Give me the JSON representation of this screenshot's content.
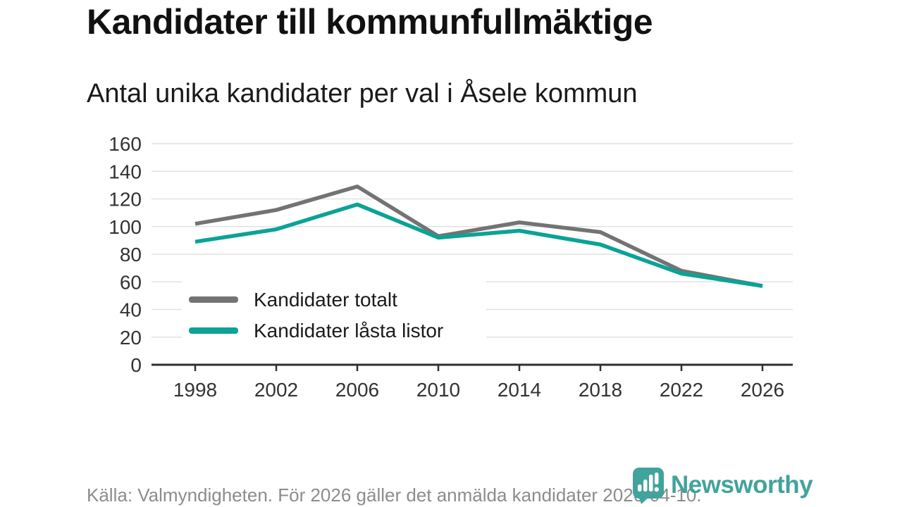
{
  "header": {
    "title": "Kandidater till kommunfullmäktige",
    "subtitle": "Antal unika kandidater per val i Åsele kommun"
  },
  "chart_data": {
    "type": "line",
    "title": "Kandidater till kommunfullmäktige",
    "subtitle": "Antal unika kandidater per val i Åsele kommun",
    "categories": [
      "1998",
      "2002",
      "2006",
      "2010",
      "2014",
      "2018",
      "2022",
      "2026"
    ],
    "series": [
      {
        "name": "Kandidater totalt",
        "color": "#737373",
        "values": [
          102,
          112,
          129,
          93,
          103,
          96,
          68,
          57
        ]
      },
      {
        "name": "Kandidater låsta listor",
        "color": "#0aa396",
        "values": [
          89,
          98,
          116,
          92,
          97,
          87,
          66,
          57
        ]
      }
    ],
    "xlabel": "",
    "ylabel": "",
    "ylim": [
      0,
      160
    ],
    "ytick_step": 20,
    "y_tick_labels": [
      "0",
      "20",
      "40",
      "60",
      "80",
      "100",
      "120",
      "140",
      "160"
    ],
    "grid": "horizontal",
    "legend_position": "inside-lower-left"
  },
  "footer": {
    "source": "Källa: Valmyndigheten. För 2026 gäller det anmälda kandidater 2026-04-10.",
    "brand": "Newsworthy"
  },
  "colors": {
    "series_total": "#737373",
    "series_locked": "#0aa396",
    "axis": "#2f2f2f",
    "grid": "#e1e1e1",
    "title_text": "#111111",
    "tick_text": "#333333",
    "footer_text": "#8c8c8c",
    "brand": "#42a39c"
  }
}
